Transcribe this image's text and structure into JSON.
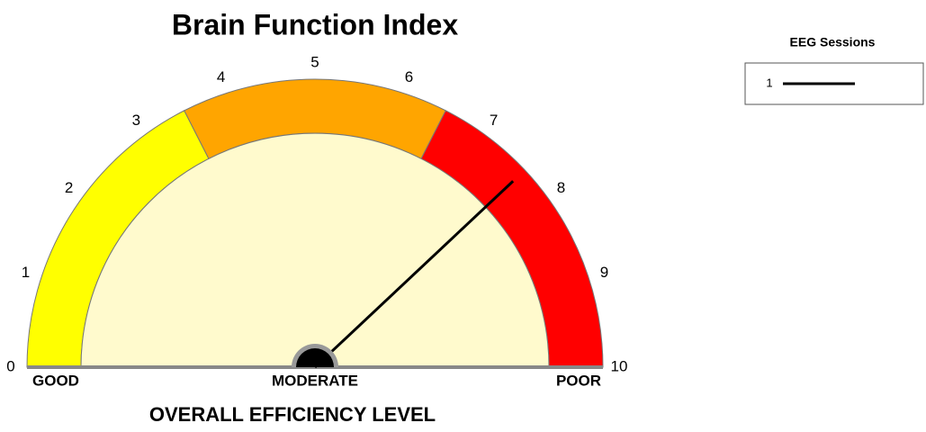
{
  "chart_data": {
    "type": "gauge",
    "title": "Brain Function Index",
    "xlabel": "OVERALL EFFICIENCY LEVEL",
    "xlim": [
      0,
      10
    ],
    "xticks": [
      0,
      1,
      2,
      3,
      4,
      5,
      6,
      7,
      8,
      9,
      10
    ],
    "bands": [
      {
        "from": 0,
        "to": 3.5,
        "color": "#ffff00"
      },
      {
        "from": 3.5,
        "to": 6.5,
        "color": "#ffa500"
      },
      {
        "from": 6.5,
        "to": 10,
        "color": "#ff0000"
      }
    ],
    "zone_labels": [
      "GOOD",
      "MODERATE",
      "POOR"
    ],
    "legend_title": "EEG Sessions",
    "series": [
      {
        "name": "1",
        "color": "#000000",
        "values": [
          7.6
        ]
      }
    ]
  }
}
